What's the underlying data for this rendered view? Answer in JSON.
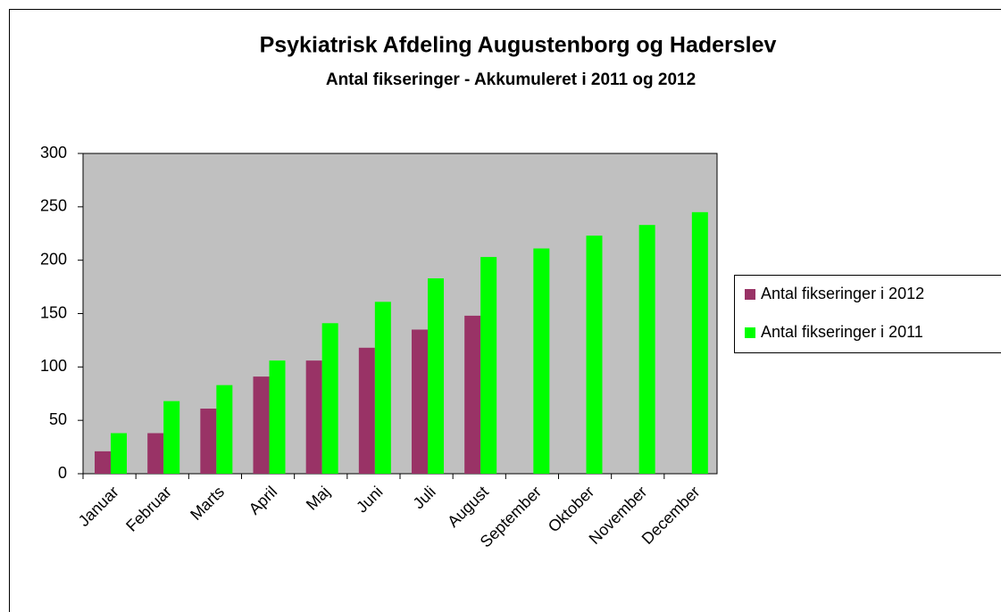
{
  "chart_data": {
    "type": "bar",
    "title": "Psykiatrisk Afdeling Augustenborg og Haderslev",
    "subtitle": "Antal fikseringer - Akkumuleret i 2011 og 2012",
    "categories": [
      "Januar",
      "Februar",
      "Marts",
      "April",
      "Maj",
      "Juni",
      "Juli",
      "August",
      "September",
      "Oktober",
      "November",
      "December"
    ],
    "series": [
      {
        "name": "Antal fikseringer i 2012",
        "color": "#993366",
        "values": [
          21,
          38,
          61,
          91,
          106,
          118,
          135,
          148,
          null,
          null,
          null,
          null
        ]
      },
      {
        "name": "Antal fikseringer i 2011",
        "color": "#00ff00",
        "values": [
          38,
          68,
          83,
          106,
          141,
          161,
          183,
          203,
          211,
          223,
          233,
          245
        ]
      }
    ],
    "ylim": [
      0,
      300
    ],
    "yticks": [
      0,
      50,
      100,
      150,
      200,
      250,
      300
    ],
    "plot_background": "#c0c0c0",
    "legend": "right"
  }
}
